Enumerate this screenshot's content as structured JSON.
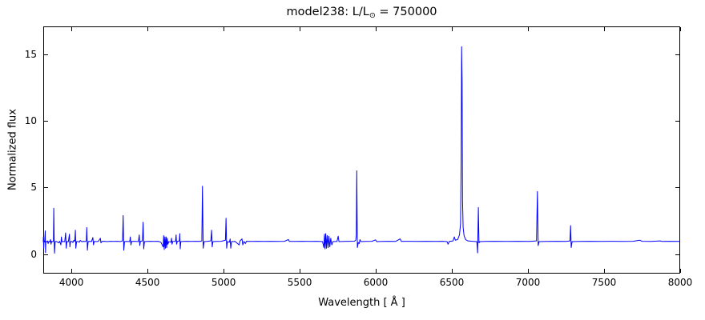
{
  "figure": {
    "title_prefix": "model238: L/L",
    "title_sub": "⊙",
    "title_suffix": " = 750000",
    "xlabel": "Wavelength [ Å ]",
    "ylabel": "Normalized flux",
    "frame_color": "#000000",
    "text_color": "#000000",
    "background": "#ffffff"
  },
  "chart_data": {
    "type": "line",
    "title": "model238: L/L⊙ = 750000",
    "xlabel": "Wavelength [ Å ]",
    "ylabel": "Normalized flux",
    "xlim": [
      3815,
      8000
    ],
    "ylim": [
      -1.45,
      17.07
    ],
    "x_ticks": [
      4000,
      4500,
      5000,
      5500,
      6000,
      6500,
      7000,
      7500,
      8000
    ],
    "x_tick_labels": [
      "4000",
      "4500",
      "5000",
      "5500",
      "6000",
      "6500",
      "7000",
      "7500",
      "8000"
    ],
    "y_ticks": [
      0,
      5,
      10,
      15
    ],
    "y_tick_labels": [
      "0",
      "5",
      "10",
      "15"
    ],
    "grid": false,
    "legend": "none",
    "line_color": "#0000ff",
    "continuum_level": 0.97,
    "major_peaks": [
      {
        "wavelength": 3884,
        "flux": 3.45
      },
      {
        "wavelength": 4026,
        "flux": 1.8
      },
      {
        "wavelength": 4101,
        "flux": 2.0
      },
      {
        "wavelength": 4340,
        "flux": 2.9
      },
      {
        "wavelength": 4471,
        "flux": 2.4
      },
      {
        "wavelength": 4861,
        "flux": 5.1
      },
      {
        "wavelength": 4922,
        "flux": 1.8
      },
      {
        "wavelength": 5016,
        "flux": 2.7
      },
      {
        "wavelength": 5876,
        "flux": 6.25
      },
      {
        "wavelength": 6564,
        "flux": 15.55
      },
      {
        "wavelength": 6674,
        "flux": 3.5
      },
      {
        "wavelength": 7065,
        "flux": 4.7
      },
      {
        "wavelength": 7281,
        "flux": 2.15
      }
    ],
    "series": [
      {
        "name": "normalized-spectrum",
        "points": [
          [
            3815,
            0.92
          ],
          [
            3816,
            1.3
          ],
          [
            3818,
            0.45
          ],
          [
            3820,
            1.0
          ],
          [
            3824,
            0.93
          ],
          [
            3828,
            1.75
          ],
          [
            3830,
            0.12
          ],
          [
            3832,
            0.95
          ],
          [
            3838,
            0.93
          ],
          [
            3843,
            1.0
          ],
          [
            3847,
            0.8
          ],
          [
            3852,
            0.97
          ],
          [
            3858,
            0.92
          ],
          [
            3863,
            1.1
          ],
          [
            3866,
            0.75
          ],
          [
            3870,
            0.96
          ],
          [
            3877,
            0.94
          ],
          [
            3882,
            1.0
          ],
          [
            3884,
            3.45
          ],
          [
            3887,
            0.85
          ],
          [
            3889,
            0.08
          ],
          [
            3893,
            0.95
          ],
          [
            3900,
            0.96
          ],
          [
            3908,
            0.92
          ],
          [
            3916,
            0.85
          ],
          [
            3922,
            0.97
          ],
          [
            3931,
            0.7
          ],
          [
            3934,
            1.3
          ],
          [
            3938,
            0.93
          ],
          [
            3946,
            0.96
          ],
          [
            3956,
            0.94
          ],
          [
            3962,
            1.6
          ],
          [
            3966,
            0.45
          ],
          [
            3970,
            0.95
          ],
          [
            3980,
            0.94
          ],
          [
            3987,
            1.5
          ],
          [
            3990,
            0.55
          ],
          [
            3994,
            0.95
          ],
          [
            4004,
            0.96
          ],
          [
            4010,
            0.88
          ],
          [
            4016,
            1.05
          ],
          [
            4022,
            0.97
          ],
          [
            4026,
            1.8
          ],
          [
            4029,
            0.45
          ],
          [
            4034,
            0.95
          ],
          [
            4043,
            0.96
          ],
          [
            4052,
            0.9
          ],
          [
            4058,
            1.04
          ],
          [
            4068,
            0.94
          ],
          [
            4080,
            0.97
          ],
          [
            4090,
            0.95
          ],
          [
            4098,
            1.0
          ],
          [
            4101,
            2.0
          ],
          [
            4105,
            0.3
          ],
          [
            4110,
            0.95
          ],
          [
            4120,
            0.97
          ],
          [
            4132,
            0.95
          ],
          [
            4141,
            1.25
          ],
          [
            4145,
            0.7
          ],
          [
            4150,
            0.96
          ],
          [
            4165,
            0.95
          ],
          [
            4178,
            0.97
          ],
          [
            4190,
            1.2
          ],
          [
            4194,
            0.85
          ],
          [
            4200,
            0.96
          ],
          [
            4215,
            0.97
          ],
          [
            4235,
            0.95
          ],
          [
            4255,
            0.97
          ],
          [
            4280,
            0.96
          ],
          [
            4305,
            0.97
          ],
          [
            4322,
            0.95
          ],
          [
            4336,
            1.0
          ],
          [
            4340,
            2.9
          ],
          [
            4344,
            0.3
          ],
          [
            4349,
            0.95
          ],
          [
            4362,
            0.96
          ],
          [
            4383,
            0.95
          ],
          [
            4387,
            1.3
          ],
          [
            4391,
            0.7
          ],
          [
            4396,
            0.96
          ],
          [
            4415,
            0.97
          ],
          [
            4440,
            0.95
          ],
          [
            4446,
            1.45
          ],
          [
            4449,
            0.65
          ],
          [
            4453,
            0.96
          ],
          [
            4467,
            1.0
          ],
          [
            4471,
            2.4
          ],
          [
            4475,
            0.4
          ],
          [
            4480,
            0.95
          ],
          [
            4498,
            0.96
          ],
          [
            4520,
            0.97
          ],
          [
            4545,
            0.96
          ],
          [
            4570,
            0.97
          ],
          [
            4588,
            0.9
          ],
          [
            4603,
            0.55
          ],
          [
            4606,
            1.4
          ],
          [
            4610,
            0.35
          ],
          [
            4614,
            1.3
          ],
          [
            4618,
            0.45
          ],
          [
            4622,
            1.3
          ],
          [
            4626,
            0.5
          ],
          [
            4630,
            1.2
          ],
          [
            4634,
            0.75
          ],
          [
            4640,
            0.95
          ],
          [
            4654,
            0.9
          ],
          [
            4658,
            1.2
          ],
          [
            4661,
            0.75
          ],
          [
            4666,
            0.96
          ],
          [
            4684,
            0.97
          ],
          [
            4688,
            1.45
          ],
          [
            4691,
            0.75
          ],
          [
            4696,
            0.96
          ],
          [
            4709,
            1.0
          ],
          [
            4712,
            1.55
          ],
          [
            4715,
            0.4
          ],
          [
            4719,
            0.95
          ],
          [
            4735,
            0.96
          ],
          [
            4760,
            0.97
          ],
          [
            4790,
            0.96
          ],
          [
            4820,
            0.97
          ],
          [
            4845,
            0.96
          ],
          [
            4857,
            1.0
          ],
          [
            4861,
            5.1
          ],
          [
            4866,
            0.45
          ],
          [
            4872,
            0.95
          ],
          [
            4890,
            0.96
          ],
          [
            4916,
            1.0
          ],
          [
            4921,
            1.8
          ],
          [
            4925,
            0.55
          ],
          [
            4930,
            0.95
          ],
          [
            4955,
            0.96
          ],
          [
            4985,
            0.97
          ],
          [
            5012,
            1.05
          ],
          [
            5016,
            2.7
          ],
          [
            5020,
            0.45
          ],
          [
            5025,
            0.95
          ],
          [
            5038,
            0.9
          ],
          [
            5043,
            1.15
          ],
          [
            5047,
            0.45
          ],
          [
            5052,
            0.95
          ],
          [
            5075,
            0.96
          ],
          [
            5102,
            0.7
          ],
          [
            5108,
            1.0
          ],
          [
            5121,
            1.15
          ],
          [
            5126,
            0.7
          ],
          [
            5134,
            0.96
          ],
          [
            5143,
            0.8
          ],
          [
            5150,
            0.97
          ],
          [
            5185,
            0.96
          ],
          [
            5225,
            0.97
          ],
          [
            5265,
            0.96
          ],
          [
            5310,
            0.97
          ],
          [
            5355,
            0.96
          ],
          [
            5400,
            0.97
          ],
          [
            5426,
            1.1
          ],
          [
            5432,
            0.96
          ],
          [
            5470,
            0.96
          ],
          [
            5520,
            0.97
          ],
          [
            5570,
            0.96
          ],
          [
            5615,
            0.97
          ],
          [
            5650,
            0.95
          ],
          [
            5659,
            0.5
          ],
          [
            5663,
            1.5
          ],
          [
            5667,
            0.4
          ],
          [
            5671,
            1.55
          ],
          [
            5676,
            0.45
          ],
          [
            5681,
            1.4
          ],
          [
            5687,
            0.5
          ],
          [
            5692,
            1.35
          ],
          [
            5698,
            0.55
          ],
          [
            5704,
            1.2
          ],
          [
            5711,
            0.7
          ],
          [
            5718,
            0.95
          ],
          [
            5745,
            0.96
          ],
          [
            5753,
            1.35
          ],
          [
            5758,
            0.95
          ],
          [
            5790,
            0.96
          ],
          [
            5830,
            0.97
          ],
          [
            5860,
            0.98
          ],
          [
            5868,
            1.05
          ],
          [
            5872,
            1.4
          ],
          [
            5875,
            6.25
          ],
          [
            5879,
            0.5
          ],
          [
            5885,
            0.88
          ],
          [
            5891,
            0.8
          ],
          [
            5896,
            1.1
          ],
          [
            5902,
            0.95
          ],
          [
            5935,
            0.96
          ],
          [
            5975,
            0.97
          ],
          [
            5998,
            1.08
          ],
          [
            6006,
            0.95
          ],
          [
            6040,
            0.96
          ],
          [
            6085,
            0.97
          ],
          [
            6130,
            0.96
          ],
          [
            6160,
            1.15
          ],
          [
            6168,
            0.96
          ],
          [
            6210,
            0.97
          ],
          [
            6270,
            0.96
          ],
          [
            6330,
            0.97
          ],
          [
            6390,
            0.96
          ],
          [
            6440,
            0.97
          ],
          [
            6468,
            0.95
          ],
          [
            6475,
            0.75
          ],
          [
            6483,
            0.96
          ],
          [
            6508,
            1.0
          ],
          [
            6516,
            1.3
          ],
          [
            6523,
            1.05
          ],
          [
            6538,
            1.1
          ],
          [
            6550,
            1.45
          ],
          [
            6557,
            2.3
          ],
          [
            6561,
            7.0
          ],
          [
            6564,
            15.55
          ],
          [
            6567,
            13.0
          ],
          [
            6570,
            4.0
          ],
          [
            6574,
            2.0
          ],
          [
            6580,
            1.4
          ],
          [
            6590,
            1.1
          ],
          [
            6605,
            1.0
          ],
          [
            6635,
            0.97
          ],
          [
            6664,
            0.95
          ],
          [
            6669,
            0.1
          ],
          [
            6674,
            3.5
          ],
          [
            6678,
            0.85
          ],
          [
            6684,
            0.95
          ],
          [
            6720,
            0.96
          ],
          [
            6780,
            0.97
          ],
          [
            6850,
            0.96
          ],
          [
            6930,
            0.97
          ],
          [
            7010,
            0.96
          ],
          [
            7056,
            1.0
          ],
          [
            7062,
            4.7
          ],
          [
            7067,
            0.65
          ],
          [
            7073,
            0.95
          ],
          [
            7120,
            0.96
          ],
          [
            7190,
            0.97
          ],
          [
            7250,
            0.96
          ],
          [
            7276,
            1.0
          ],
          [
            7280,
            2.15
          ],
          [
            7284,
            0.5
          ],
          [
            7290,
            0.95
          ],
          [
            7340,
            0.96
          ],
          [
            7410,
            0.97
          ],
          [
            7480,
            0.96
          ],
          [
            7550,
            0.97
          ],
          [
            7620,
            0.96
          ],
          [
            7690,
            0.97
          ],
          [
            7735,
            1.05
          ],
          [
            7750,
            0.97
          ],
          [
            7810,
            0.96
          ],
          [
            7870,
            1.0
          ],
          [
            7880,
            0.96
          ],
          [
            7930,
            0.97
          ],
          [
            8000,
            0.96
          ]
        ]
      }
    ]
  }
}
